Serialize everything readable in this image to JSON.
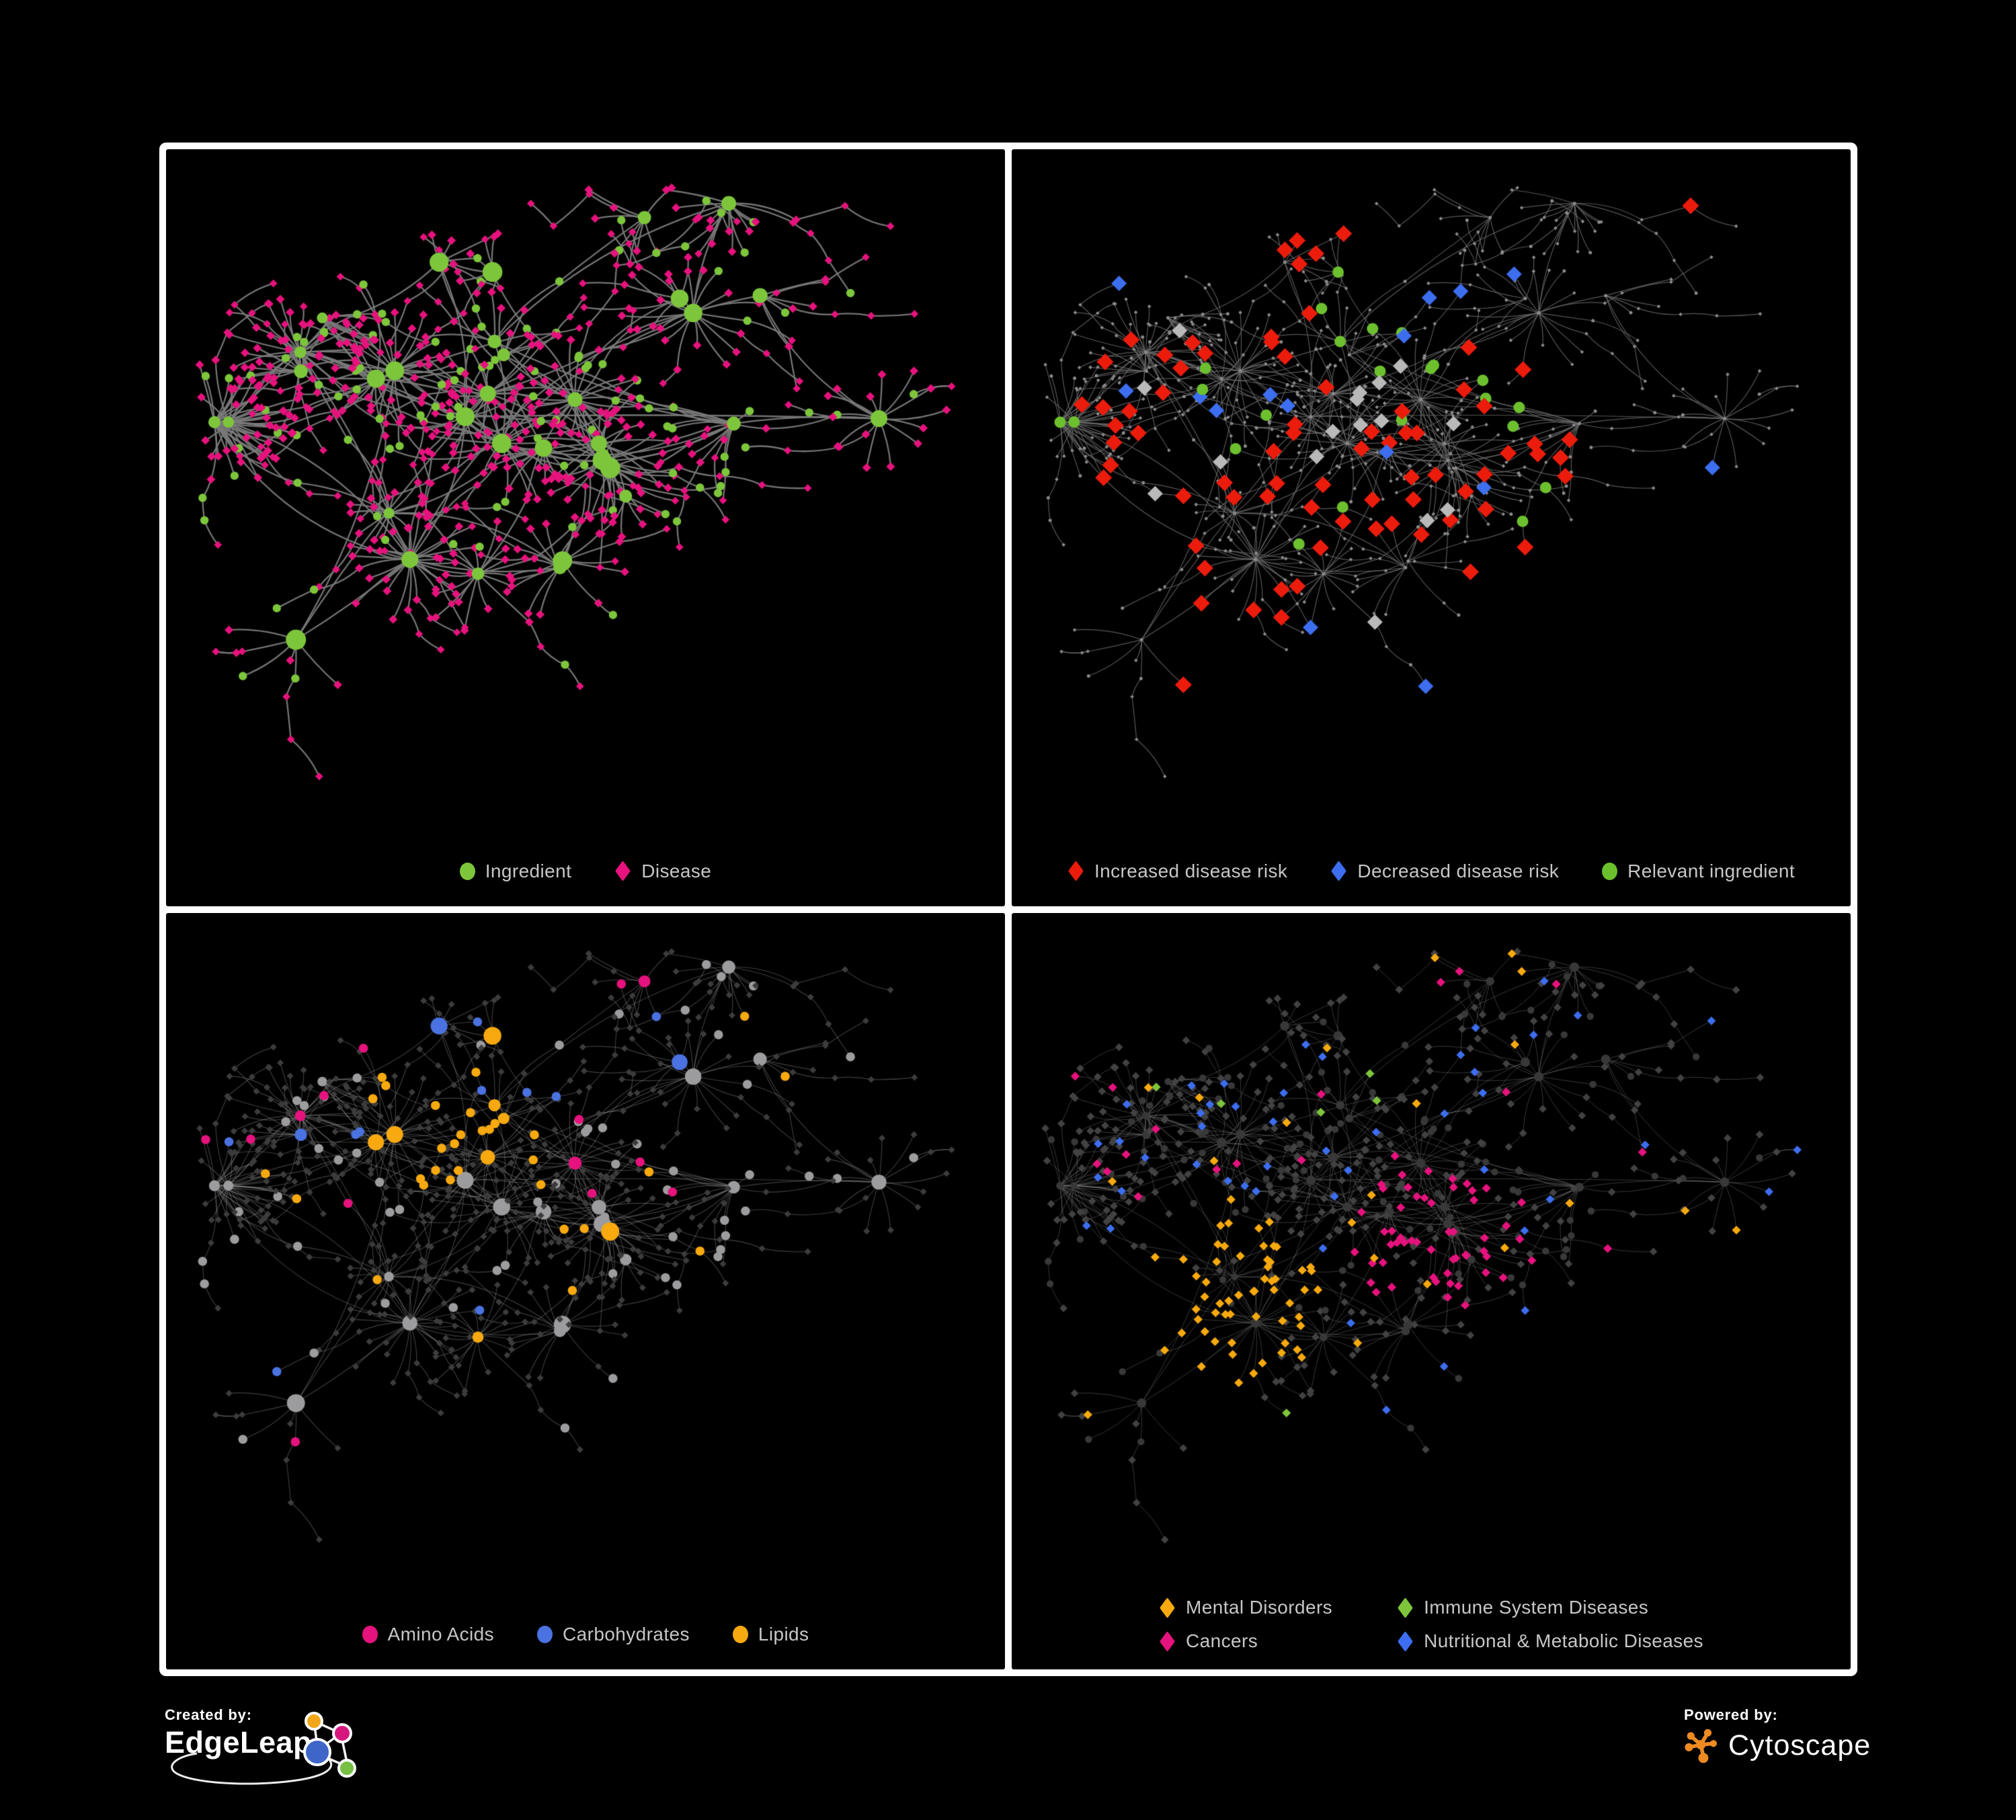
{
  "panels": [
    {
      "id": "ingredient-disease",
      "legend": [
        {
          "label": "Ingredient",
          "shape": "circle",
          "color": "#7DC63B"
        },
        {
          "label": "Disease",
          "shape": "diamond",
          "color": "#E6127D"
        }
      ]
    },
    {
      "id": "disease-risk",
      "legend": [
        {
          "label": "Increased disease risk",
          "shape": "diamond",
          "color": "#EC1C0C"
        },
        {
          "label": "Decreased disease risk",
          "shape": "diamond",
          "color": "#3D6EF0"
        },
        {
          "label": "Relevant ingredient",
          "shape": "circle",
          "color": "#6CC02E"
        }
      ]
    },
    {
      "id": "nutrient-classes",
      "legend": [
        {
          "label": "Amino Acids",
          "shape": "circle",
          "color": "#E6127D"
        },
        {
          "label": "Carbohydrates",
          "shape": "circle",
          "color": "#4A72E0"
        },
        {
          "label": "Lipids",
          "shape": "circle",
          "color": "#F7A90F"
        }
      ]
    },
    {
      "id": "disease-classes",
      "legend": [
        {
          "label": "Mental Disorders",
          "shape": "diamond",
          "color": "#F7A90F"
        },
        {
          "label": "Immune System Diseases",
          "shape": "diamond",
          "color": "#7DC63B"
        },
        {
          "label": "Cancers",
          "shape": "diamond",
          "color": "#E6127D"
        },
        {
          "label": "Nutritional & Metabolic Diseases",
          "shape": "diamond",
          "color": "#3D6EF0"
        }
      ]
    }
  ],
  "footer": {
    "created_by": "Created by:",
    "brand": "EdgeLeap",
    "powered_by": "Powered by:",
    "product": "Cytoscape"
  },
  "brand_colors": {
    "edgeleap_orange": "#F2A71B",
    "edgeleap_pink": "#D6187E",
    "edgeleap_blue": "#3E66C8",
    "edgeleap_green": "#76C043",
    "cytoscape_orange": "#EE8A22"
  },
  "network": {
    "seed": 20177,
    "hubCount": 33,
    "crossLinks": 13,
    "maxLeaves": 26,
    "styles": [
      {
        "edgeColor": "#7a7a7a",
        "edgeAlpha": 0.95,
        "edgeWidth": 2.3,
        "ingredient": "#7DC63B",
        "disease": "#E6127D"
      },
      {
        "edgeColor": "#6d6d6d",
        "edgeAlpha": 0.8,
        "edgeWidth": 1.2,
        "base": "#8b8b8b",
        "increased": "#EC1C0C",
        "decreased": "#3D6EF0",
        "neutral": "#b9b9b9",
        "relevant": "#6CC02E"
      },
      {
        "edgeColor": "#b5b5b5",
        "edgeAlpha": 0.34,
        "edgeWidth": 1.15,
        "disease": "#3c3c3c",
        "base": "#9c9c9e",
        "amino": "#E6127D",
        "carb": "#4A72E0",
        "lipid": "#F7A90F"
      },
      {
        "edgeColor": "#b5b5b5",
        "edgeAlpha": 0.3,
        "edgeWidth": 1.0,
        "ingredient": "#383838",
        "base": "#424242",
        "mental": "#F7A90F",
        "immune": "#7DC63B",
        "cancer": "#E6127D",
        "metabolic": "#3D6EF0"
      }
    ]
  }
}
